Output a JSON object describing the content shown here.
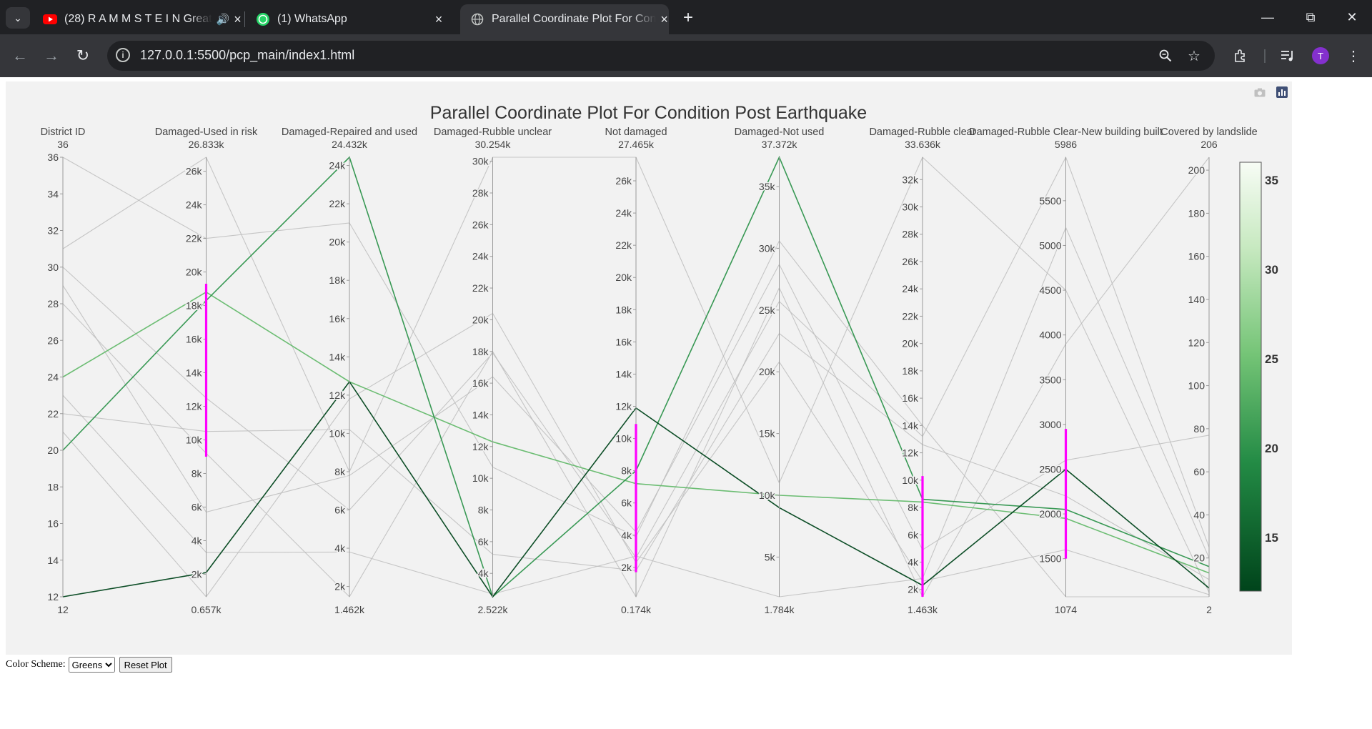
{
  "browser": {
    "tabs": [
      {
        "title": "(28) R A M M S T E I N Great",
        "icon": "youtube-icon",
        "active": false,
        "audio": true
      },
      {
        "title": "(1) WhatsApp",
        "icon": "whatsapp-icon",
        "active": false,
        "audio": false
      },
      {
        "title": "Parallel Coordinate Plot For Con",
        "icon": "globe-icon",
        "active": true,
        "audio": false
      }
    ],
    "url": "127.0.0.1:5500/pcp_main/index1.html",
    "avatar_initial": "T"
  },
  "plot": {
    "title": "Parallel Coordinate Plot For Condition Post Earthquake"
  },
  "controls": {
    "color_scheme_label": "Color Scheme:",
    "color_scheme_selected": "Greens",
    "reset_label": "Reset Plot"
  },
  "colorbar": {
    "ticks": [
      "35",
      "30",
      "25",
      "20",
      "15"
    ],
    "range": [
      12,
      36
    ],
    "colors": [
      "#00441b",
      "#238b45",
      "#74c476",
      "#c7e9c0",
      "#f7fcf5"
    ]
  },
  "chart_data": {
    "type": "parallel_coordinates",
    "title": "Parallel Coordinate Plot For Condition Post Earthquake",
    "dimensions": [
      {
        "label": "District ID",
        "min": 12,
        "max": 36,
        "min_label": "12",
        "max_label": "36",
        "ticks": [
          {
            "v": 12,
            "t": "12"
          },
          {
            "v": 14,
            "t": "14"
          },
          {
            "v": 16,
            "t": "16"
          },
          {
            "v": 18,
            "t": "18"
          },
          {
            "v": 20,
            "t": "20"
          },
          {
            "v": 22,
            "t": "22"
          },
          {
            "v": 24,
            "t": "24"
          },
          {
            "v": 26,
            "t": "26"
          },
          {
            "v": 28,
            "t": "28"
          },
          {
            "v": 30,
            "t": "30"
          },
          {
            "v": 32,
            "t": "32"
          },
          {
            "v": 34,
            "t": "34"
          },
          {
            "v": 36,
            "t": "36"
          }
        ]
      },
      {
        "label": "Damaged-Used in risk",
        "min": 657,
        "max": 26833,
        "min_label": "0.657k",
        "max_label": "26.833k",
        "ticks": [
          {
            "v": 2000,
            "t": "2k"
          },
          {
            "v": 4000,
            "t": "4k"
          },
          {
            "v": 6000,
            "t": "6k"
          },
          {
            "v": 8000,
            "t": "8k"
          },
          {
            "v": 10000,
            "t": "10k"
          },
          {
            "v": 12000,
            "t": "12k"
          },
          {
            "v": 14000,
            "t": "14k"
          },
          {
            "v": 16000,
            "t": "16k"
          },
          {
            "v": 18000,
            "t": "18k"
          },
          {
            "v": 20000,
            "t": "20k"
          },
          {
            "v": 22000,
            "t": "22k"
          },
          {
            "v": 24000,
            "t": "24k"
          },
          {
            "v": 26000,
            "t": "26k"
          }
        ],
        "constraint": [
          9000,
          19300
        ]
      },
      {
        "label": "Damaged-Repaired and used",
        "min": 1462,
        "max": 24432,
        "min_label": "1.462k",
        "max_label": "24.432k",
        "ticks": [
          {
            "v": 2000,
            "t": "2k"
          },
          {
            "v": 4000,
            "t": "4k"
          },
          {
            "v": 6000,
            "t": "6k"
          },
          {
            "v": 8000,
            "t": "8k"
          },
          {
            "v": 10000,
            "t": "10k"
          },
          {
            "v": 12000,
            "t": "12k"
          },
          {
            "v": 14000,
            "t": "14k"
          },
          {
            "v": 16000,
            "t": "16k"
          },
          {
            "v": 18000,
            "t": "18k"
          },
          {
            "v": 20000,
            "t": "20k"
          },
          {
            "v": 22000,
            "t": "22k"
          },
          {
            "v": 24000,
            "t": "24k"
          }
        ]
      },
      {
        "label": "Damaged-Rubble unclear",
        "min": 2522,
        "max": 30254,
        "min_label": "2.522k",
        "max_label": "30.254k",
        "ticks": [
          {
            "v": 4000,
            "t": "4k"
          },
          {
            "v": 6000,
            "t": "6k"
          },
          {
            "v": 8000,
            "t": "8k"
          },
          {
            "v": 10000,
            "t": "10k"
          },
          {
            "v": 12000,
            "t": "12k"
          },
          {
            "v": 14000,
            "t": "14k"
          },
          {
            "v": 16000,
            "t": "16k"
          },
          {
            "v": 18000,
            "t": "18k"
          },
          {
            "v": 20000,
            "t": "20k"
          },
          {
            "v": 22000,
            "t": "22k"
          },
          {
            "v": 24000,
            "t": "24k"
          },
          {
            "v": 26000,
            "t": "26k"
          },
          {
            "v": 28000,
            "t": "28k"
          },
          {
            "v": 30000,
            "t": "30k"
          }
        ]
      },
      {
        "label": "Not damaged",
        "min": 174,
        "max": 27465,
        "min_label": "0.174k",
        "max_label": "27.465k",
        "ticks": [
          {
            "v": 2000,
            "t": "2k"
          },
          {
            "v": 4000,
            "t": "4k"
          },
          {
            "v": 6000,
            "t": "6k"
          },
          {
            "v": 8000,
            "t": "8k"
          },
          {
            "v": 10000,
            "t": "10k"
          },
          {
            "v": 12000,
            "t": "12k"
          },
          {
            "v": 14000,
            "t": "14k"
          },
          {
            "v": 16000,
            "t": "16k"
          },
          {
            "v": 18000,
            "t": "18k"
          },
          {
            "v": 20000,
            "t": "20k"
          },
          {
            "v": 22000,
            "t": "22k"
          },
          {
            "v": 24000,
            "t": "24k"
          },
          {
            "v": 26000,
            "t": "26k"
          }
        ],
        "constraint": [
          1700,
          10900
        ]
      },
      {
        "label": "Damaged-Not used",
        "min": 1784,
        "max": 37372,
        "min_label": "1.784k",
        "max_label": "37.372k",
        "ticks": [
          {
            "v": 5000,
            "t": "5k"
          },
          {
            "v": 10000,
            "t": "10k"
          },
          {
            "v": 15000,
            "t": "15k"
          },
          {
            "v": 20000,
            "t": "20k"
          },
          {
            "v": 25000,
            "t": "25k"
          },
          {
            "v": 30000,
            "t": "30k"
          },
          {
            "v": 35000,
            "t": "35k"
          }
        ]
      },
      {
        "label": "Damaged-Rubble clear",
        "min": 1463,
        "max": 33636,
        "min_label": "1.463k",
        "max_label": "33.636k",
        "ticks": [
          {
            "v": 2000,
            "t": "2k"
          },
          {
            "v": 4000,
            "t": "4k"
          },
          {
            "v": 6000,
            "t": "6k"
          },
          {
            "v": 8000,
            "t": "8k"
          },
          {
            "v": 10000,
            "t": "10k"
          },
          {
            "v": 12000,
            "t": "12k"
          },
          {
            "v": 14000,
            "t": "14k"
          },
          {
            "v": 16000,
            "t": "16k"
          },
          {
            "v": 18000,
            "t": "18k"
          },
          {
            "v": 20000,
            "t": "20k"
          },
          {
            "v": 22000,
            "t": "22k"
          },
          {
            "v": 24000,
            "t": "24k"
          },
          {
            "v": 26000,
            "t": "26k"
          },
          {
            "v": 28000,
            "t": "28k"
          },
          {
            "v": 30000,
            "t": "30k"
          },
          {
            "v": 32000,
            "t": "32k"
          }
        ],
        "constraint": [
          1463,
          10300
        ]
      },
      {
        "label": "Damaged-Rubble Clear-New building built",
        "min": 1074,
        "max": 5986,
        "min_label": "1074",
        "max_label": "5986",
        "ticks": [
          {
            "v": 1500,
            "t": "1500"
          },
          {
            "v": 2000,
            "t": "2000"
          },
          {
            "v": 2500,
            "t": "2500"
          },
          {
            "v": 3000,
            "t": "3000"
          },
          {
            "v": 3500,
            "t": "3500"
          },
          {
            "v": 4000,
            "t": "4000"
          },
          {
            "v": 4500,
            "t": "4500"
          },
          {
            "v": 5000,
            "t": "5000"
          },
          {
            "v": 5500,
            "t": "5500"
          }
        ],
        "constraint": [
          1500,
          2950
        ]
      },
      {
        "label": "Covered by landslide",
        "min": 2,
        "max": 206,
        "min_label": "2",
        "max_label": "206",
        "ticks": [
          {
            "v": 20,
            "t": "20"
          },
          {
            "v": 40,
            "t": "40"
          },
          {
            "v": 60,
            "t": "60"
          },
          {
            "v": 80,
            "t": "80"
          },
          {
            "v": 100,
            "t": "100"
          },
          {
            "v": 120,
            "t": "120"
          },
          {
            "v": 140,
            "t": "140"
          },
          {
            "v": 160,
            "t": "160"
          },
          {
            "v": 180,
            "t": "180"
          },
          {
            "v": 200,
            "t": "200"
          }
        ]
      }
    ],
    "lines": [
      {
        "color": 24,
        "values": [
          24,
          18800,
          12700,
          12300,
          7200,
          10000,
          8400,
          1950,
          13
        ],
        "highlight": true
      },
      {
        "color": 20,
        "values": [
          20,
          18300,
          24432,
          2522,
          8000,
          37372,
          8600,
          2050,
          16
        ],
        "highlight": true
      },
      {
        "color": 12,
        "values": [
          12,
          2100,
          12700,
          2522,
          11900,
          9000,
          2300,
          2500,
          6
        ],
        "highlight": true
      },
      {
        "color": 36,
        "values": [
          36,
          22000,
          21000,
          10700,
          3900,
          30600,
          14000,
          1074,
          2
        ],
        "highlight": false
      },
      {
        "color": 31,
        "values": [
          31,
          26833,
          8000,
          30254,
          27465,
          11000,
          33636,
          4500,
          4
        ],
        "highlight": false
      },
      {
        "color": 30,
        "values": [
          30,
          12500,
          6000,
          17900,
          2600,
          25700,
          13200,
          5986,
          25
        ],
        "highlight": false
      },
      {
        "color": 29,
        "values": [
          29,
          5700,
          7800,
          16400,
          4200,
          28700,
          4900,
          2600,
          77
        ],
        "highlight": false
      },
      {
        "color": 28,
        "values": [
          28,
          9200,
          1462,
          18000,
          174,
          26800,
          1463,
          3900,
          206
        ],
        "highlight": false
      },
      {
        "color": 23,
        "values": [
          23,
          3300,
          3800,
          2700,
          2700,
          1784,
          2800,
          5200,
          20
        ],
        "highlight": false
      },
      {
        "color": 22,
        "values": [
          22,
          10500,
          10200,
          5200,
          1800,
          23100,
          12600,
          2200,
          10
        ],
        "highlight": false
      },
      {
        "color": 21,
        "values": [
          21,
          657,
          11800,
          20400,
          2300,
          20800,
          2600,
          1600,
          3
        ],
        "highlight": false
      }
    ]
  }
}
